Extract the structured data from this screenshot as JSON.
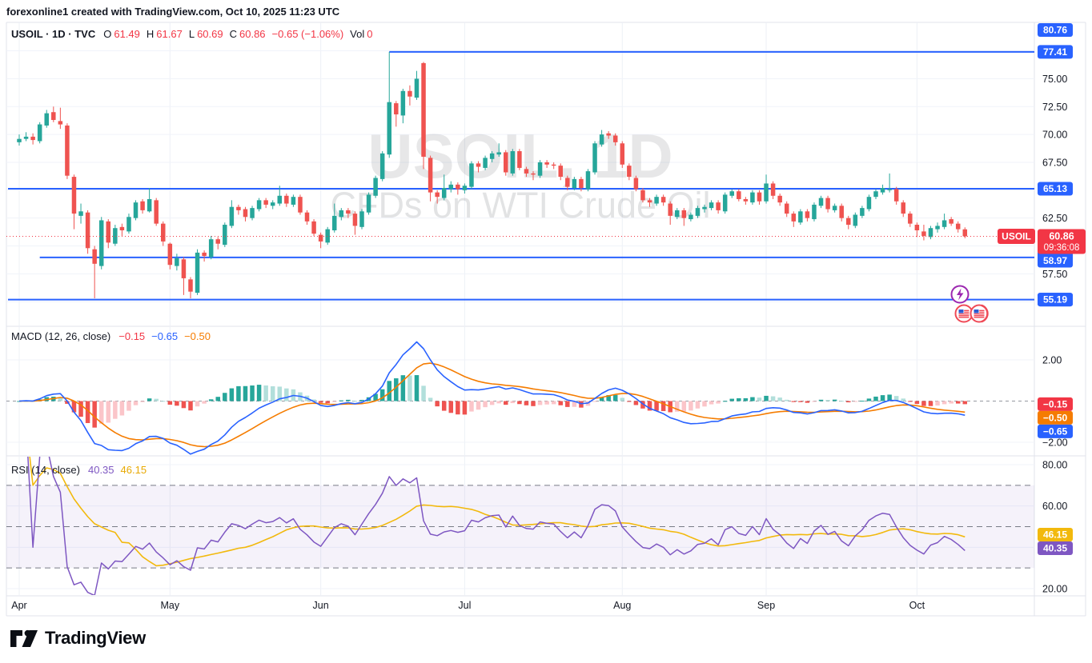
{
  "header": {
    "attribution": "forexonline1 created with TradingView.com, Oct 10, 2025 11:23 UTC"
  },
  "symbol_legend": {
    "title": "USOIL · 1D · TVC",
    "o_label": "O",
    "o": "61.49",
    "h_label": "H",
    "h": "61.67",
    "l_label": "L",
    "l": "60.69",
    "c_label": "C",
    "c": "60.86",
    "change": "−0.65 (−1.06%)",
    "vol_label": "Vol",
    "vol": "0"
  },
  "macd_legend": {
    "title": "MACD (12, 26, close)",
    "hist": "−0.15",
    "macd": "−0.65",
    "signal": "−0.50"
  },
  "rsi_legend": {
    "title": "RSI (14, close)",
    "rsi": "40.35",
    "ma": "46.15"
  },
  "watermark": {
    "line1": "USOIL, 1D",
    "line2": "CFDs on WTI Crude Oil"
  },
  "logo": {
    "text": "TradingView"
  },
  "colors": {
    "up": "#26a69a",
    "down": "#ef5350",
    "level_blue": "#2962ff",
    "price_red": "#f23645",
    "macd_line": "#2962ff",
    "signal_line": "#f57c00",
    "hist_up_strong": "#26a69a",
    "hist_up_weak": "#b2dfdb",
    "hist_down_strong": "#ef5350",
    "hist_down_weak": "#fbc5c9",
    "rsi_line": "#7e57c2",
    "rsi_ma_line": "#f2b90d",
    "rsi_band_fill": "rgba(126,87,194,0.08)",
    "grid": "#f0f3fa",
    "vgrid": "#edf0f6",
    "frame": "#e0e3eb",
    "dashed_gray": "#787b86",
    "text": "#131722",
    "event_purple": "#9c27b0",
    "event_red": "#ef4956",
    "flag_blue": "#2d5bd1"
  },
  "chart_data": {
    "type": "candlestick",
    "symbol": "USOIL",
    "interval": "1D",
    "exchange": "TVC",
    "visible_price_range": [
      52.8,
      80.0
    ],
    "months": [
      {
        "label": "Apr",
        "index": 0
      },
      {
        "label": "May",
        "index": 22
      },
      {
        "label": "Jun",
        "index": 44
      },
      {
        "label": "Jul",
        "index": 65
      },
      {
        "label": "Aug",
        "index": 88
      },
      {
        "label": "Sep",
        "index": 109
      },
      {
        "label": "Oct",
        "index": 131
      }
    ],
    "grid_prices": [
      77.5,
      75,
      72.5,
      70,
      67.5,
      65,
      62.5,
      60,
      57.5,
      55
    ],
    "price_ticks": [
      {
        "label": "75.00",
        "value": 75
      },
      {
        "label": "72.50",
        "value": 72.5
      },
      {
        "label": "70.00",
        "value": 70
      },
      {
        "label": "67.50",
        "value": 67.5
      },
      {
        "label": "62.50",
        "value": 62.5
      },
      {
        "label": "57.50",
        "value": 57.5
      }
    ],
    "levels": [
      {
        "label": "80.76",
        "value": 80.76,
        "line": false,
        "from_index": null
      },
      {
        "label": "77.41",
        "value": 77.41,
        "line": true,
        "from_index": 54
      },
      {
        "label": "65.13",
        "value": 65.13,
        "line": true,
        "from_index": null
      },
      {
        "label": "58.97",
        "value": 58.97,
        "line": true,
        "from_index": 3
      },
      {
        "label": "55.19",
        "value": 55.19,
        "line": true,
        "from_index": null
      }
    ],
    "current": {
      "price": 60.86,
      "price_label": "60.86",
      "countdown": "09:36:08",
      "symbol_tag": "USOIL"
    },
    "candles": [
      [
        69.3,
        70.0,
        69.0,
        69.6
      ],
      [
        69.6,
        70.2,
        69.4,
        69.8
      ],
      [
        69.8,
        70.1,
        69.1,
        69.5
      ],
      [
        69.4,
        71.1,
        69.2,
        70.9
      ],
      [
        70.8,
        72.2,
        70.6,
        71.9
      ],
      [
        72.0,
        72.5,
        71.1,
        71.3
      ],
      [
        71.2,
        72.4,
        70.5,
        70.9
      ],
      [
        70.8,
        71.0,
        66.0,
        66.3
      ],
      [
        66.2,
        66.4,
        61.5,
        62.9
      ],
      [
        62.7,
        63.8,
        62.0,
        63.1
      ],
      [
        63.0,
        63.2,
        59.3,
        59.8
      ],
      [
        59.7,
        60.0,
        55.3,
        58.4
      ],
      [
        58.2,
        62.6,
        57.9,
        62.3
      ],
      [
        62.2,
        62.4,
        59.8,
        60.3
      ],
      [
        60.2,
        61.9,
        60.0,
        61.6
      ],
      [
        61.7,
        62.0,
        60.9,
        61.4
      ],
      [
        61.3,
        62.9,
        61.1,
        62.6
      ],
      [
        62.5,
        64.1,
        62.3,
        63.9
      ],
      [
        64.0,
        64.2,
        62.9,
        63.2
      ],
      [
        63.1,
        65.2,
        63.0,
        64.2
      ],
      [
        64.1,
        64.3,
        61.8,
        62.0
      ],
      [
        62.0,
        62.2,
        60.0,
        60.4
      ],
      [
        60.2,
        60.3,
        57.9,
        58.3
      ],
      [
        58.2,
        59.3,
        57.8,
        58.9
      ],
      [
        58.8,
        59.0,
        55.6,
        57.1
      ],
      [
        57.0,
        57.2,
        55.3,
        55.9
      ],
      [
        55.8,
        59.7,
        55.6,
        59.4
      ],
      [
        59.4,
        59.6,
        58.6,
        59.1
      ],
      [
        59.0,
        60.9,
        58.8,
        60.6
      ],
      [
        60.6,
        60.8,
        59.7,
        60.2
      ],
      [
        60.1,
        62.1,
        59.9,
        61.9
      ],
      [
        61.8,
        64.1,
        61.6,
        63.5
      ],
      [
        63.5,
        63.7,
        62.8,
        63.2
      ],
      [
        63.3,
        63.5,
        62.2,
        62.6
      ],
      [
        62.5,
        63.6,
        62.3,
        63.4
      ],
      [
        63.3,
        64.3,
        63.1,
        64.1
      ],
      [
        64.1,
        64.3,
        63.4,
        63.7
      ],
      [
        63.6,
        64.1,
        63.3,
        63.9
      ],
      [
        63.8,
        65.4,
        63.6,
        64.5
      ],
      [
        64.5,
        64.7,
        63.5,
        63.8
      ],
      [
        63.7,
        64.6,
        63.5,
        64.4
      ],
      [
        64.4,
        64.6,
        62.8,
        63.0
      ],
      [
        63.0,
        63.2,
        61.9,
        62.2
      ],
      [
        62.2,
        62.4,
        60.9,
        61.1
      ],
      [
        61.0,
        61.2,
        59.8,
        60.4
      ],
      [
        60.3,
        61.7,
        60.1,
        61.5
      ],
      [
        61.4,
        63.8,
        61.2,
        62.7
      ],
      [
        62.6,
        63.4,
        62.3,
        63.2
      ],
      [
        63.2,
        63.4,
        62.5,
        62.9
      ],
      [
        62.9,
        63.1,
        61.0,
        61.8
      ],
      [
        61.7,
        63.3,
        61.5,
        63.1
      ],
      [
        63.0,
        64.8,
        62.8,
        64.6
      ],
      [
        64.5,
        66.3,
        64.3,
        66.1
      ],
      [
        66.0,
        68.5,
        65.8,
        68.3
      ],
      [
        68.2,
        77.41,
        67.9,
        72.9
      ],
      [
        72.8,
        73.0,
        70.7,
        71.8
      ],
      [
        71.7,
        74.1,
        71.0,
        73.9
      ],
      [
        73.9,
        74.4,
        72.6,
        73.4
      ],
      [
        73.3,
        75.7,
        73.1,
        75.0
      ],
      [
        76.4,
        76.5,
        66.9,
        68.0
      ],
      [
        67.9,
        68.1,
        64.0,
        64.8
      ],
      [
        64.8,
        65.0,
        63.8,
        64.4
      ],
      [
        64.3,
        66.4,
        64.1,
        65.2
      ],
      [
        65.1,
        65.8,
        64.8,
        65.5
      ],
      [
        65.5,
        65.7,
        64.6,
        65.1
      ],
      [
        65.0,
        65.6,
        64.7,
        65.4
      ],
      [
        65.3,
        67.6,
        65.1,
        67.4
      ],
      [
        67.4,
        67.6,
        66.6,
        67.1
      ],
      [
        67.0,
        68.1,
        66.8,
        67.9
      ],
      [
        67.8,
        68.5,
        67.5,
        68.3
      ],
      [
        68.2,
        69.2,
        68.0,
        68.4
      ],
      [
        68.4,
        68.6,
        66.3,
        66.6
      ],
      [
        66.5,
        68.7,
        66.3,
        68.5
      ],
      [
        68.5,
        68.7,
        66.8,
        67.0
      ],
      [
        66.9,
        67.1,
        66.2,
        66.5
      ],
      [
        66.5,
        66.7,
        65.9,
        66.4
      ],
      [
        66.3,
        67.7,
        66.1,
        67.5
      ],
      [
        67.5,
        67.7,
        67.0,
        67.3
      ],
      [
        67.3,
        67.5,
        66.9,
        67.2
      ],
      [
        67.2,
        67.4,
        65.9,
        66.2
      ],
      [
        66.1,
        66.3,
        65.0,
        65.3
      ],
      [
        65.2,
        66.2,
        65.0,
        66.0
      ],
      [
        66.0,
        66.2,
        64.9,
        65.2
      ],
      [
        65.1,
        66.9,
        64.9,
        66.7
      ],
      [
        66.6,
        69.4,
        66.4,
        69.2
      ],
      [
        69.1,
        70.4,
        68.9,
        70.0
      ],
      [
        70.1,
        70.3,
        69.6,
        69.9
      ],
      [
        69.9,
        70.1,
        69.0,
        69.3
      ],
      [
        69.2,
        69.4,
        67.0,
        67.3
      ],
      [
        67.2,
        67.4,
        65.9,
        66.2
      ],
      [
        66.1,
        66.3,
        64.9,
        65.1
      ],
      [
        65.0,
        65.2,
        63.9,
        64.1
      ],
      [
        64.1,
        64.3,
        63.5,
        63.9
      ],
      [
        63.8,
        64.6,
        63.6,
        64.4
      ],
      [
        64.4,
        64.6,
        63.6,
        63.9
      ],
      [
        63.8,
        64.0,
        61.9,
        62.7
      ],
      [
        62.6,
        63.4,
        62.4,
        63.2
      ],
      [
        63.2,
        63.4,
        61.8,
        62.5
      ],
      [
        62.4,
        63.0,
        62.2,
        62.8
      ],
      [
        62.7,
        63.6,
        62.5,
        63.4
      ],
      [
        63.3,
        63.7,
        63.0,
        63.5
      ],
      [
        63.4,
        64.1,
        63.2,
        63.9
      ],
      [
        63.9,
        64.1,
        62.9,
        63.2
      ],
      [
        63.1,
        64.8,
        62.9,
        64.6
      ],
      [
        64.5,
        65.1,
        64.3,
        64.9
      ],
      [
        64.9,
        65.1,
        64.0,
        64.2
      ],
      [
        64.2,
        64.4,
        63.7,
        64.0
      ],
      [
        63.9,
        65.0,
        63.7,
        64.8
      ],
      [
        64.8,
        65.0,
        63.7,
        64.0
      ],
      [
        64.0,
        66.4,
        63.8,
        65.6
      ],
      [
        65.6,
        65.8,
        64.2,
        64.5
      ],
      [
        64.5,
        64.7,
        63.6,
        63.9
      ],
      [
        63.8,
        64.0,
        62.6,
        62.9
      ],
      [
        62.9,
        63.1,
        61.7,
        62.2
      ],
      [
        62.1,
        63.3,
        61.9,
        63.1
      ],
      [
        63.1,
        63.3,
        62.2,
        62.5
      ],
      [
        62.4,
        63.9,
        62.2,
        63.7
      ],
      [
        63.6,
        64.5,
        63.4,
        64.3
      ],
      [
        64.3,
        64.5,
        63.0,
        63.3
      ],
      [
        63.2,
        63.8,
        63.0,
        63.6
      ],
      [
        63.6,
        63.8,
        62.2,
        62.5
      ],
      [
        62.5,
        62.7,
        61.5,
        61.9
      ],
      [
        61.8,
        63.0,
        61.6,
        62.8
      ],
      [
        62.7,
        63.6,
        62.5,
        63.4
      ],
      [
        63.3,
        64.6,
        63.1,
        64.4
      ],
      [
        64.4,
        65.1,
        64.2,
        64.9
      ],
      [
        64.8,
        65.5,
        64.6,
        65.2
      ],
      [
        65.0,
        66.5,
        64.8,
        65.1
      ],
      [
        65.1,
        65.3,
        63.7,
        64.0
      ],
      [
        63.9,
        64.1,
        62.6,
        62.9
      ],
      [
        62.9,
        63.1,
        61.7,
        62.0
      ],
      [
        61.9,
        62.1,
        60.8,
        61.4
      ],
      [
        61.3,
        61.9,
        60.5,
        60.9
      ],
      [
        60.8,
        61.8,
        60.6,
        61.6
      ],
      [
        61.5,
        62.1,
        61.2,
        61.8
      ],
      [
        61.7,
        62.9,
        61.5,
        62.3
      ],
      [
        62.4,
        62.6,
        61.8,
        62.0
      ],
      [
        62.0,
        62.2,
        61.2,
        61.5
      ],
      [
        61.49,
        61.67,
        60.69,
        60.86
      ]
    ],
    "indicators": [
      {
        "type": "MACD",
        "params": [
          12,
          26,
          9
        ],
        "last": {
          "hist": -0.15,
          "macd": -0.65,
          "signal": -0.5
        },
        "ticks": [
          {
            "label": "2.00",
            "value": 2
          },
          {
            "label": "−2.00",
            "value": -2
          }
        ],
        "badges": [
          {
            "label": "−0.15",
            "value": -0.15,
            "color": "#f23645"
          },
          {
            "label": "−0.50",
            "value": -0.5,
            "color": "#f57c00"
          },
          {
            "label": "−0.65",
            "value": -0.65,
            "color": "#2962ff"
          }
        ]
      },
      {
        "type": "RSI",
        "params": [
          14
        ],
        "last": {
          "rsi": 40.35,
          "ma": 46.15
        },
        "ticks": [
          {
            "label": "80.00",
            "value": 80
          },
          {
            "label": "60.00",
            "value": 60
          },
          {
            "label": "20.00",
            "value": 20
          }
        ],
        "grid_values": [
          80,
          60,
          40,
          20
        ],
        "bands": [
          70,
          50,
          30
        ],
        "badges": [
          {
            "label": "46.15",
            "value": 46.15,
            "color": "#f2b90d"
          },
          {
            "label": "40.35",
            "value": 40.35,
            "color": "#7e57c2"
          }
        ]
      }
    ],
    "events": [
      {
        "name": "lightning-event",
        "shape": "lightning"
      },
      {
        "name": "us-economic-event",
        "shape": "us-flag"
      },
      {
        "name": "us-economic-event",
        "shape": "us-flag"
      }
    ]
  }
}
